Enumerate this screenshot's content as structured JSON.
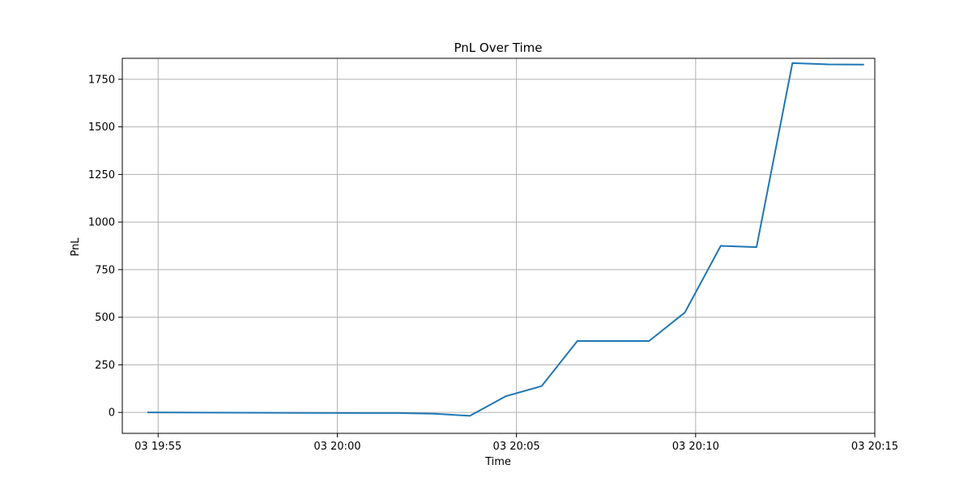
{
  "chart_data": {
    "type": "line",
    "title": "PnL Over Time",
    "xlabel": "Time",
    "ylabel": "PnL",
    "grid": true,
    "x_axis": {
      "type": "time",
      "range": [
        "03 19:54",
        "03 20:15"
      ],
      "ticks": [
        {
          "value": "03 19:55",
          "label": "03 19:55"
        },
        {
          "value": "03 20:00",
          "label": "03 20:00"
        },
        {
          "value": "03 20:05",
          "label": "03 20:05"
        },
        {
          "value": "03 20:10",
          "label": "03 20:10"
        },
        {
          "value": "03 20:15",
          "label": "03 20:15"
        }
      ]
    },
    "y_axis": {
      "range": [
        -110,
        1860
      ],
      "ticks": [
        {
          "value": 0,
          "label": "0"
        },
        {
          "value": 250,
          "label": "250"
        },
        {
          "value": 500,
          "label": "500"
        },
        {
          "value": 750,
          "label": "750"
        },
        {
          "value": 1000,
          "label": "1000"
        },
        {
          "value": 1250,
          "label": "1250"
        },
        {
          "value": 1500,
          "label": "1500"
        },
        {
          "value": 1750,
          "label": "1750"
        }
      ]
    },
    "series": [
      {
        "color": "#1f77b4",
        "points": [
          {
            "x": "03 19:54:42",
            "y": 0
          },
          {
            "x": "03 20:00:42",
            "y": -3
          },
          {
            "x": "03 20:01:42",
            "y": -3
          },
          {
            "x": "03 20:02:42",
            "y": -7
          },
          {
            "x": "03 20:03:42",
            "y": -18
          },
          {
            "x": "03 20:04:42",
            "y": 85
          },
          {
            "x": "03 20:05:42",
            "y": 138
          },
          {
            "x": "03 20:06:42",
            "y": 375
          },
          {
            "x": "03 20:07:42",
            "y": 375
          },
          {
            "x": "03 20:08:42",
            "y": 375
          },
          {
            "x": "03 20:09:42",
            "y": 525
          },
          {
            "x": "03 20:10:42",
            "y": 875
          },
          {
            "x": "03 20:11:42",
            "y": 868
          },
          {
            "x": "03 20:12:42",
            "y": 1835
          },
          {
            "x": "03 20:13:42",
            "y": 1828
          },
          {
            "x": "03 20:14:42",
            "y": 1827
          }
        ]
      }
    ]
  }
}
